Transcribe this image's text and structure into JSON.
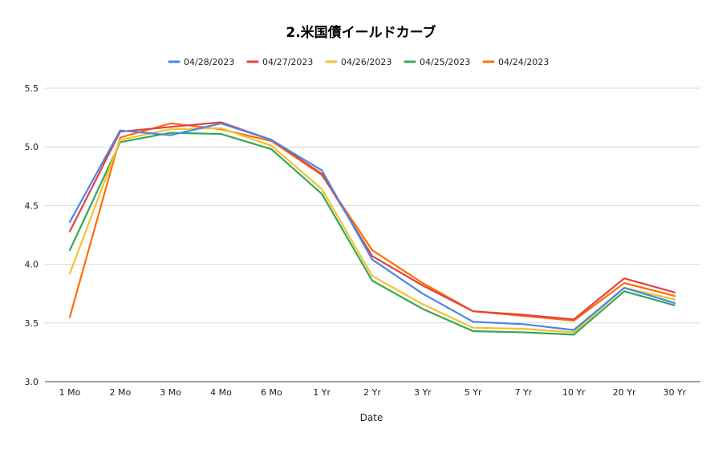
{
  "chart_data": {
    "type": "line",
    "title": "2.米国債イールドカーブ",
    "xlabel": "Date",
    "ylabel": "",
    "ylim": [
      3.0,
      5.5
    ],
    "yticks": [
      3.0,
      3.5,
      4.0,
      4.5,
      5.0,
      5.5
    ],
    "ytick_labels": [
      "3.0",
      "3.5",
      "4.0",
      "4.5",
      "5.0",
      "5.5"
    ],
    "grid": true,
    "legend_position": "top",
    "categories": [
      "1 Mo",
      "2 Mo",
      "3 Mo",
      "4 Mo",
      "6 Mo",
      "1 Yr",
      "2 Yr",
      "3 Yr",
      "5 Yr",
      "7 Yr",
      "10 Yr",
      "20 Yr",
      "30 Yr"
    ],
    "series": [
      {
        "name": "04/28/2023",
        "color": "#4a86e8",
        "values": [
          4.36,
          5.14,
          5.1,
          5.2,
          5.06,
          4.8,
          4.04,
          3.75,
          3.51,
          3.49,
          3.44,
          3.8,
          3.67
        ]
      },
      {
        "name": "04/27/2023",
        "color": "#e0443e",
        "values": [
          4.28,
          5.13,
          5.17,
          5.21,
          5.06,
          4.77,
          4.07,
          3.82,
          3.6,
          3.57,
          3.53,
          3.88,
          3.76
        ]
      },
      {
        "name": "04/26/2023",
        "color": "#f1c232",
        "values": [
          3.92,
          5.06,
          5.15,
          5.16,
          5.01,
          4.64,
          3.9,
          3.66,
          3.46,
          3.45,
          3.42,
          3.8,
          3.7
        ]
      },
      {
        "name": "04/25/2023",
        "color": "#34a853",
        "values": [
          4.12,
          5.04,
          5.12,
          5.11,
          4.98,
          4.6,
          3.86,
          3.62,
          3.43,
          3.42,
          3.4,
          3.77,
          3.65
        ]
      },
      {
        "name": "04/24/2023",
        "color": "#ff6d01",
        "values": [
          3.55,
          5.08,
          5.2,
          5.15,
          5.05,
          4.76,
          4.12,
          3.84,
          3.6,
          3.56,
          3.52,
          3.84,
          3.73
        ]
      }
    ]
  }
}
